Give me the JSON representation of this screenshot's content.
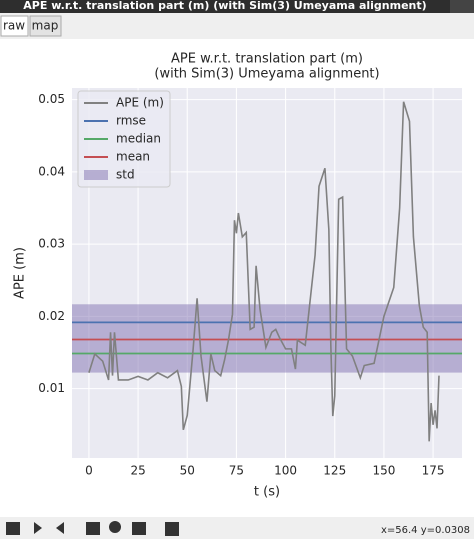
{
  "window": {
    "title": "APE w.r.t. translation part (m) (with Sim(3) Umeyama alignment)",
    "tabs": [
      "raw",
      "map"
    ],
    "status": "x=56.4 y=0.0308"
  },
  "chart_data": {
    "type": "line",
    "title": [
      "APE w.r.t. translation part (m)",
      "(with Sim(3) Umeyama alignment)"
    ],
    "xlabel": "t (s)",
    "ylabel": "APE (m)",
    "x": [
      0,
      3,
      7,
      10,
      11,
      12,
      13,
      15,
      20,
      25,
      30,
      35,
      40,
      45,
      47,
      48,
      50,
      53,
      55,
      57,
      60,
      62,
      64,
      67,
      69,
      71,
      73,
      74,
      75,
      76,
      78,
      80,
      82,
      84,
      85,
      87,
      90,
      93,
      95,
      97,
      100,
      103,
      105,
      106,
      110,
      115,
      117,
      120,
      122,
      123,
      124,
      125,
      127,
      129,
      131,
      134,
      138,
      140,
      145,
      150,
      155,
      158,
      160,
      163,
      165,
      168,
      170,
      172,
      173,
      174,
      175,
      176,
      177,
      178
    ],
    "series": [
      {
        "name": "APE (m)",
        "color": "#808080",
        "values": [
          0.0122,
          0.0148,
          0.0138,
          0.0112,
          0.0178,
          0.0118,
          0.0178,
          0.0112,
          0.0112,
          0.0117,
          0.0112,
          0.0122,
          0.0115,
          0.0125,
          0.0103,
          0.0043,
          0.0063,
          0.0155,
          0.0225,
          0.0145,
          0.0082,
          0.0148,
          0.0125,
          0.0118,
          0.014,
          0.0168,
          0.0203,
          0.0333,
          0.0315,
          0.0343,
          0.031,
          0.0316,
          0.0182,
          0.0185,
          0.027,
          0.021,
          0.0157,
          0.0178,
          0.0182,
          0.017,
          0.0155,
          0.0155,
          0.0127,
          0.0167,
          0.016,
          0.0285,
          0.038,
          0.0405,
          0.032,
          0.016,
          0.0062,
          0.009,
          0.0362,
          0.0365,
          0.0155,
          0.0145,
          0.0115,
          0.0132,
          0.0135,
          0.02,
          0.024,
          0.035,
          0.0497,
          0.047,
          0.031,
          0.0215,
          0.0185,
          0.0178,
          0.0027,
          0.008,
          0.005,
          0.007,
          0.0045,
          0.0118
        ]
      }
    ],
    "hlines": [
      {
        "name": "rmse",
        "color": "#4c72b0",
        "value": 0.01917
      },
      {
        "name": "median",
        "color": "#55a868",
        "value": 0.01486
      },
      {
        "name": "mean",
        "color": "#c44e52",
        "value": 0.0168
      }
    ],
    "band": {
      "name": "std",
      "color": "#8172b2",
      "range": [
        0.01222,
        0.02167
      ]
    },
    "xlim": [
      -8.6,
      189.7
    ],
    "ylim": [
      0.0004,
      0.0516
    ],
    "xticks": [
      0,
      25,
      50,
      75,
      100,
      125,
      150,
      175
    ],
    "yticks": [
      0.01,
      0.02,
      0.03,
      0.04,
      0.05
    ],
    "grid": true,
    "legend": "upper left"
  }
}
